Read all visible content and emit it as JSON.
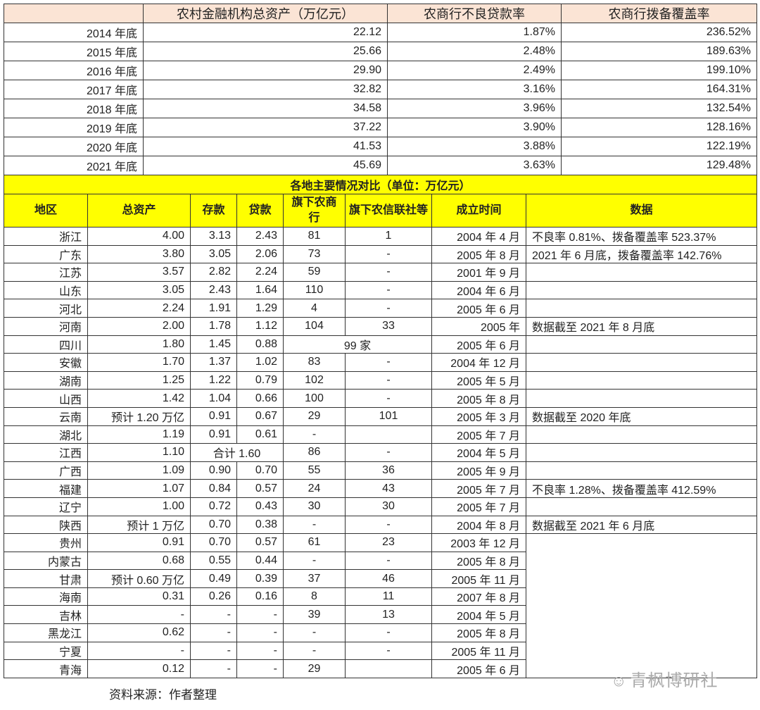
{
  "top_table": {
    "headers": [
      "",
      "农村金融机构总资产（万亿元）",
      "农商行不良贷款率",
      "农商行拨备覆盖率"
    ],
    "rows": [
      [
        "2014 年底",
        "22.12",
        "1.87%",
        "236.52%"
      ],
      [
        "2015 年底",
        "25.66",
        "2.48%",
        "189.63%"
      ],
      [
        "2016 年底",
        "29.90",
        "2.49%",
        "199.10%"
      ],
      [
        "2017 年底",
        "32.82",
        "3.16%",
        "164.31%"
      ],
      [
        "2018 年底",
        "34.58",
        "3.96%",
        "132.54%"
      ],
      [
        "2019 年底",
        "37.22",
        "3.90%",
        "128.16%"
      ],
      [
        "2020 年底",
        "41.53",
        "3.88%",
        "122.19%"
      ],
      [
        "2021 年底",
        "45.69",
        "3.63%",
        "129.48%"
      ]
    ]
  },
  "bottom_table": {
    "title": "各地主要情况对比（单位：万亿元）",
    "headers": [
      "地区",
      "总资产",
      "存款",
      "贷款",
      "旗下农商行",
      "旗下农信联社等",
      "成立时间",
      "数据"
    ],
    "rows": [
      {
        "region": "浙江",
        "assets": "4.00",
        "deposits": "3.13",
        "loans": "2.43",
        "rcb": "81",
        "rcu": "1",
        "est": "2004 年 4 月",
        "note": "不良率 0.81%、拨备覆盖率 523.37%"
      },
      {
        "region": "广东",
        "assets": "3.80",
        "deposits": "3.05",
        "loans": "2.06",
        "rcb": "73",
        "rcu": "-",
        "est": "2005 年 8 月",
        "note": "2021 年 6 月底，拨备覆盖率 142.76%"
      },
      {
        "region": "江苏",
        "assets": "3.57",
        "deposits": "2.82",
        "loans": "2.24",
        "rcb": "59",
        "rcu": "-",
        "est": "2001 年 9 月",
        "note": ""
      },
      {
        "region": "山东",
        "assets": "3.05",
        "deposits": "2.43",
        "loans": "1.64",
        "rcb": "110",
        "rcu": "-",
        "est": "2004 年 6 月",
        "note": ""
      },
      {
        "region": "河北",
        "assets": "2.24",
        "deposits": "1.91",
        "loans": "1.29",
        "rcb": "4",
        "rcu": "-",
        "est": "2005 年 6 月",
        "note": ""
      },
      {
        "region": "河南",
        "assets": "2.00",
        "deposits": "1.78",
        "loans": "1.12",
        "rcb": "104",
        "rcu": "33",
        "est": "2005 年",
        "note": "数据截至 2021 年 8 月底"
      },
      {
        "region": "四川",
        "assets": "1.80",
        "deposits": "1.45",
        "loans": "0.88",
        "banks_combined": "99 家",
        "est": "2005 年 6 月",
        "note": ""
      },
      {
        "region": "安徽",
        "assets": "1.70",
        "deposits": "1.37",
        "loans": "1.02",
        "rcb": "83",
        "rcu": "-",
        "est": "2004 年 12 月",
        "note": ""
      },
      {
        "region": "湖南",
        "assets": "1.25",
        "deposits": "1.22",
        "loans": "0.79",
        "rcb": "102",
        "rcu": "-",
        "est": "2005 年 5 月",
        "note": ""
      },
      {
        "region": "山西",
        "assets": "1.42",
        "deposits": "1.04",
        "loans": "0.66",
        "rcb": "100",
        "rcu": "-",
        "est": "2005 年 8 月",
        "note": ""
      },
      {
        "region": "云南",
        "assets": "预计 1.20 万亿",
        "deposits": "0.91",
        "loans": "0.67",
        "rcb": "29",
        "rcu": "101",
        "est": "2005 年 3 月",
        "note": "数据截至 2020 年底"
      },
      {
        "region": "湖北",
        "assets": "1.19",
        "deposits": "0.91",
        "loans": "0.61",
        "rcb": "-",
        "rcu": "",
        "est": "2005 年 7 月",
        "note": ""
      },
      {
        "region": "江西",
        "assets": "1.10",
        "dep_loan_combined": "合计 1.60",
        "rcb": "86",
        "rcu": "-",
        "est": "2004 年 5 月",
        "note": ""
      },
      {
        "region": "广西",
        "assets": "1.09",
        "deposits": "0.90",
        "loans": "0.70",
        "rcb": "55",
        "rcu": "36",
        "est": "2005 年 9 月",
        "note": ""
      },
      {
        "region": "福建",
        "assets": "1.07",
        "deposits": "0.84",
        "loans": "0.57",
        "rcb": "24",
        "rcu": "43",
        "est": "2005 年 7 月",
        "note": "不良率 1.28%、拨备覆盖率 412.59%"
      },
      {
        "region": "辽宁",
        "assets": "1.00",
        "deposits": "0.72",
        "loans": "0.43",
        "rcb": "30",
        "rcu": "30",
        "est": "2005 年 7 月",
        "note": ""
      },
      {
        "region": "陕西",
        "assets": "预计 1 万亿",
        "deposits": "0.70",
        "loans": "0.38",
        "rcb": "-",
        "rcu": "-",
        "est": "2004 年 8 月",
        "note": "数据截至 2021 年 6 月底"
      },
      {
        "region": "贵州",
        "assets": "0.91",
        "deposits": "0.70",
        "loans": "0.57",
        "rcb": "61",
        "rcu": "23",
        "est": "2003 年 12 月",
        "note_merged_start": true
      },
      {
        "region": "内蒙古",
        "assets": "0.68",
        "deposits": "0.55",
        "loans": "0.44",
        "rcb": "-",
        "rcu": "-",
        "est": "2005 年 8 月"
      },
      {
        "region": "甘肃",
        "assets": "预计 0.60 万亿",
        "deposits": "0.49",
        "loans": "0.39",
        "rcb": "37",
        "rcu": "46",
        "est": "2005 年 11 月"
      },
      {
        "region": "海南",
        "assets": "0.31",
        "deposits": "0.26",
        "loans": "0.16",
        "rcb": "8",
        "rcu": "11",
        "est": "2007 年 8 月"
      },
      {
        "region": "吉林",
        "assets": "-",
        "deposits": "-",
        "loans": "-",
        "rcb": "39",
        "rcu": "13",
        "est": "2004 年 5 月"
      },
      {
        "region": "黑龙江",
        "assets": "0.62",
        "deposits": "-",
        "loans": "-",
        "rcb": "-",
        "rcu": "-",
        "est": "2005 年 8 月"
      },
      {
        "region": "宁夏",
        "assets": "-",
        "deposits": "-",
        "loans": "-",
        "rcb": "-",
        "rcu": "-",
        "est": "2005 年 11 月"
      },
      {
        "region": "青海",
        "assets": "0.12",
        "deposits": "-",
        "loans": "-",
        "rcb": "29",
        "rcu": "",
        "est": "2005 年 6 月"
      }
    ]
  },
  "source": "资料来源：作者整理",
  "watermark": "青枫博研社",
  "colors": {
    "header_peach": "#fbe4d5",
    "header_yellow": "#ffff00"
  }
}
